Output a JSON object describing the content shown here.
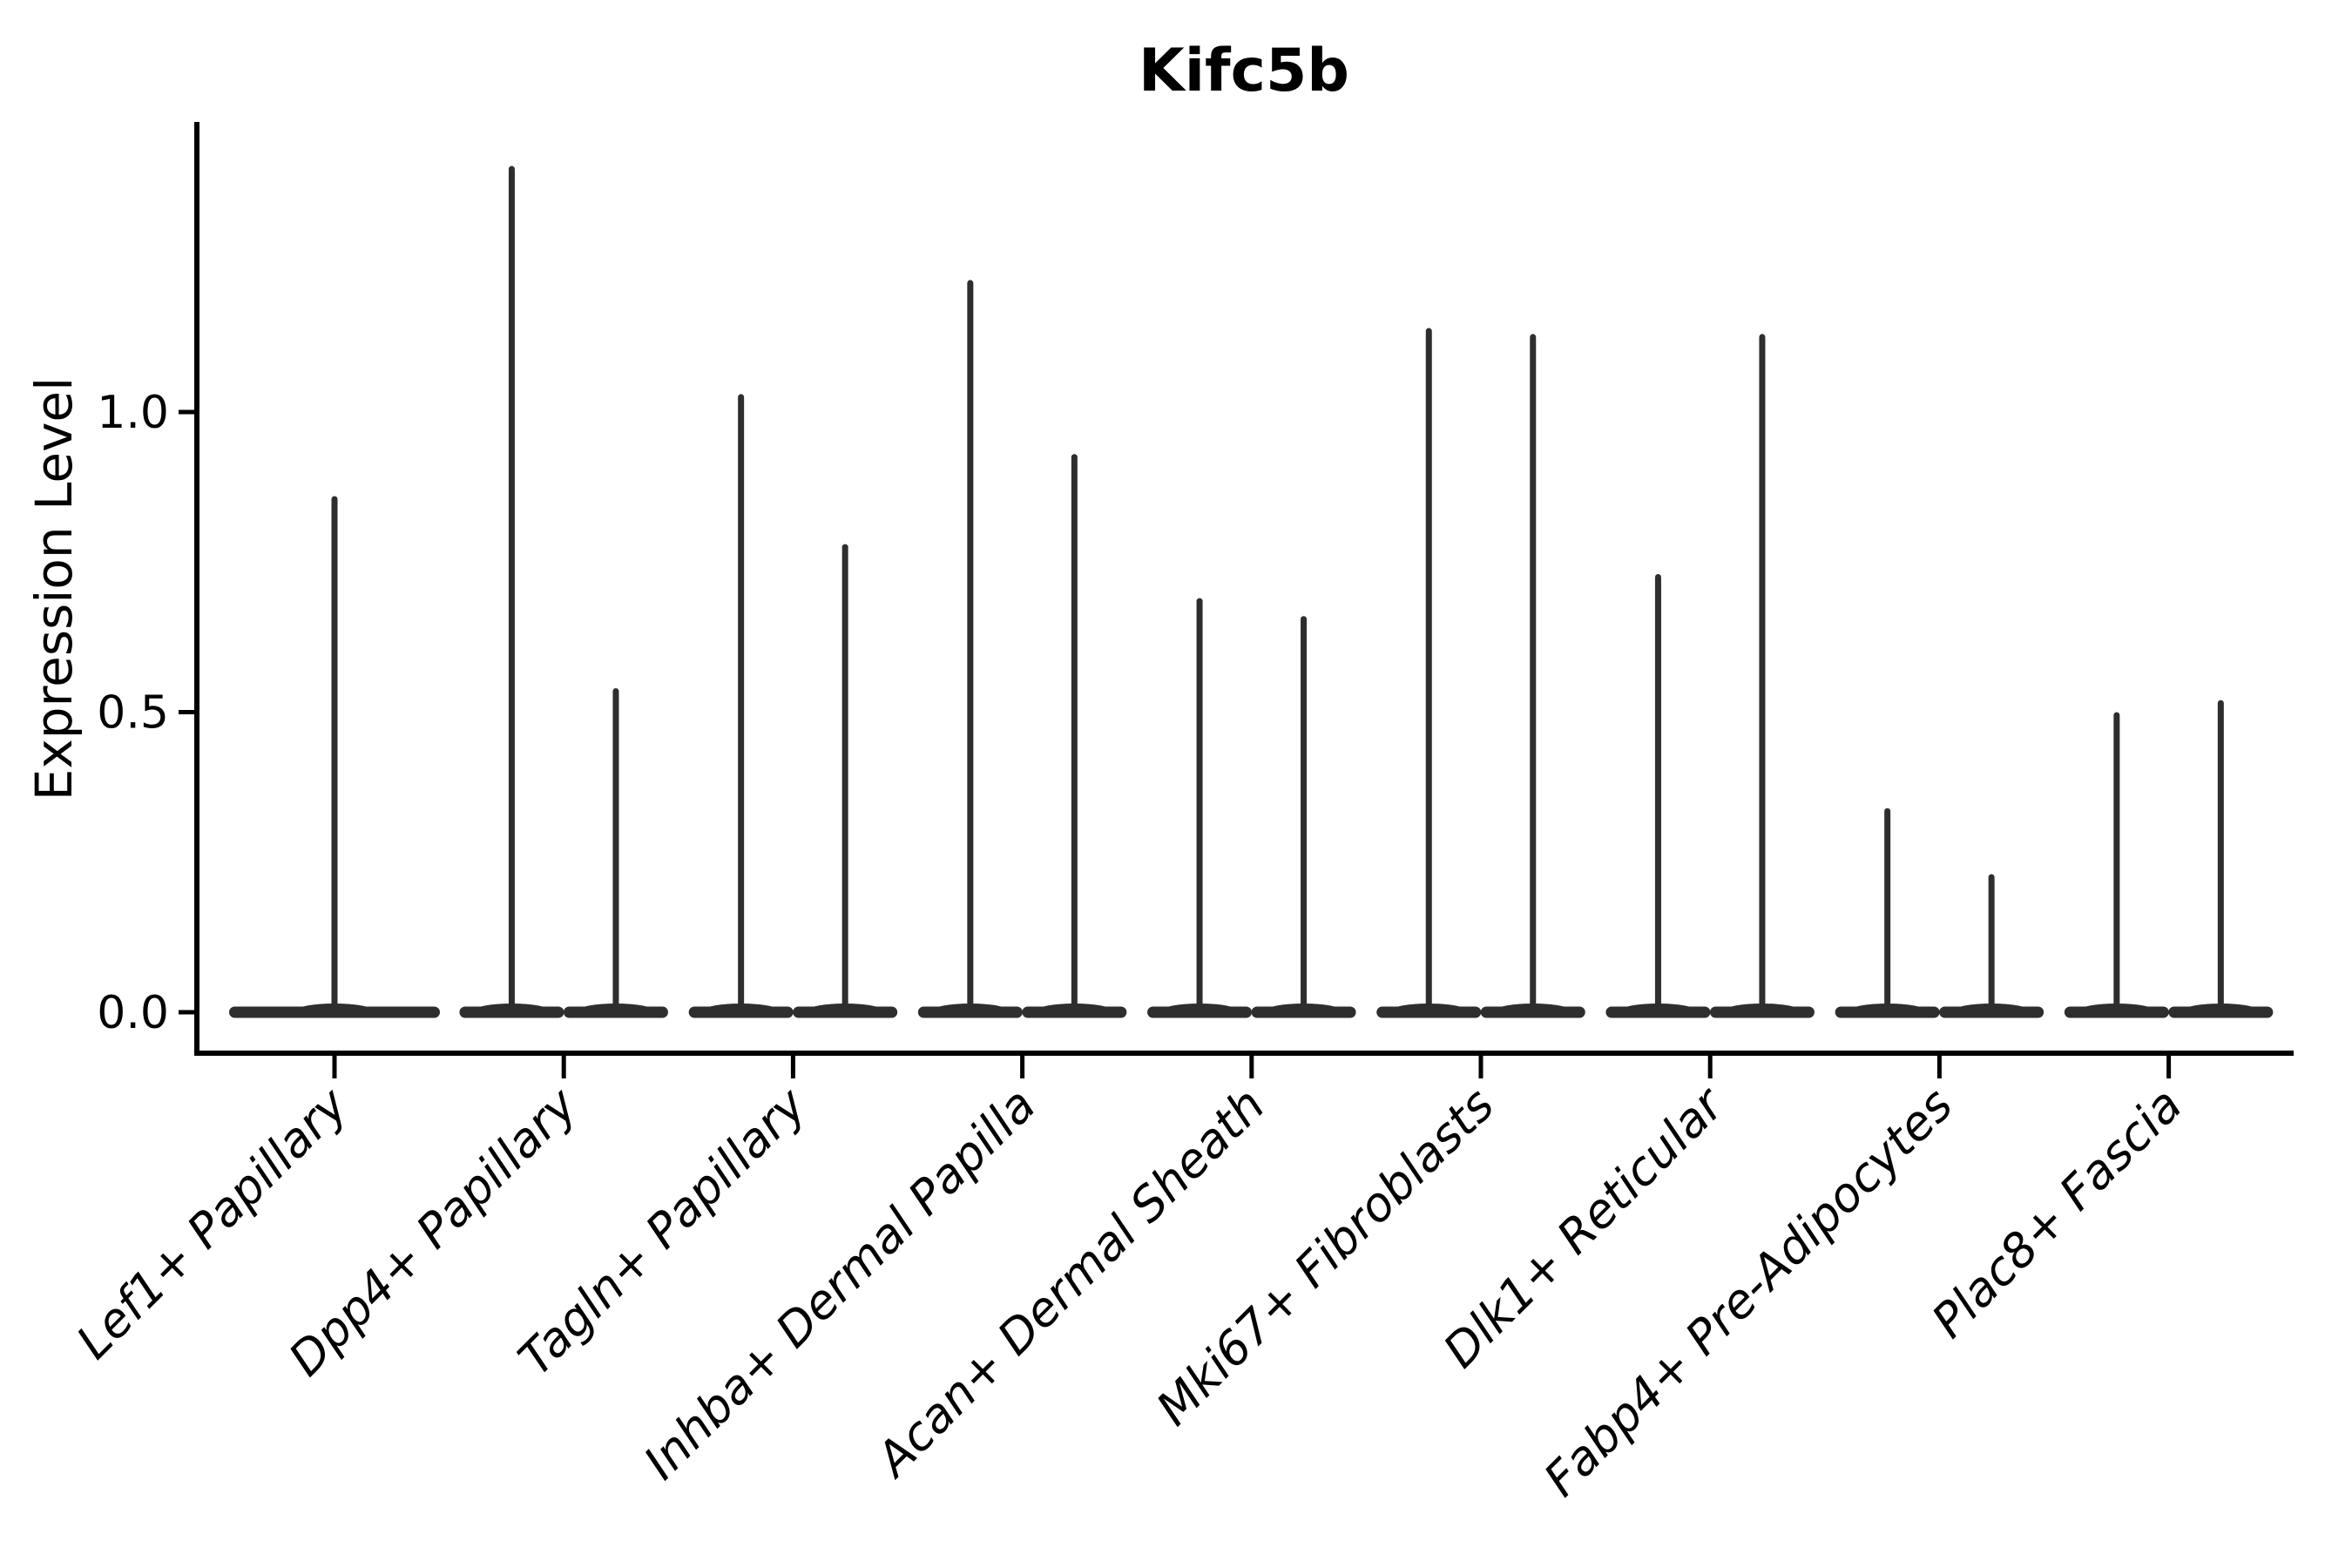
{
  "title": "Kifc5b",
  "y_axis": {
    "label": "Expression Level",
    "tick_labels": [
      "0.0",
      "0.5",
      "1.0"
    ]
  },
  "colors": {
    "violin": "#2e2e2e",
    "axis": "#000000",
    "background": "#ffffff"
  },
  "chart_data": {
    "type": "violin",
    "title": "Kifc5b",
    "xlabel": "",
    "ylabel": "Expression Level",
    "ylim": [
      -0.07,
      1.48
    ],
    "yticks": [
      0.0,
      0.5,
      1.0
    ],
    "ytick_labels": [
      "0.0",
      "0.5",
      "1.0"
    ],
    "grid": false,
    "legend": false,
    "categories": [
      "Lef1+ Papillary",
      "Dpp4+ Papillary",
      "Tagln+ Papillary",
      "Inhba+ Dermal Papilla",
      "Acan+ Dermal Sheath",
      "Mki67+ Fibroblasts",
      "Dlk1+ Reticular",
      "Fabp4+ Pre-Adipocytes",
      "Plac8+ Fascia"
    ],
    "violins": [
      {
        "category": "Lef1+ Papillary",
        "maxima": [
          0.86
        ]
      },
      {
        "category": "Dpp4+ Papillary",
        "maxima": [
          1.41,
          0.54
        ]
      },
      {
        "category": "Tagln+ Papillary",
        "maxima": [
          1.03,
          0.78
        ]
      },
      {
        "category": "Inhba+ Dermal Papilla",
        "maxima": [
          1.22,
          0.93
        ]
      },
      {
        "category": "Acan+ Dermal Sheath",
        "maxima": [
          0.69,
          0.66
        ]
      },
      {
        "category": "Mki67+ Fibroblasts",
        "maxima": [
          1.14,
          1.13
        ]
      },
      {
        "category": "Dlk1+ Reticular",
        "maxima": [
          0.73,
          1.13
        ]
      },
      {
        "category": "Fabp4+ Pre-Adipocytes",
        "maxima": [
          0.34,
          0.23
        ]
      },
      {
        "category": "Plac8+ Fascia",
        "maxima": [
          0.5,
          0.52
        ]
      }
    ],
    "violin_shape": "mostly-zero expression: wide flat base at 0 with thin spike to maximum"
  }
}
